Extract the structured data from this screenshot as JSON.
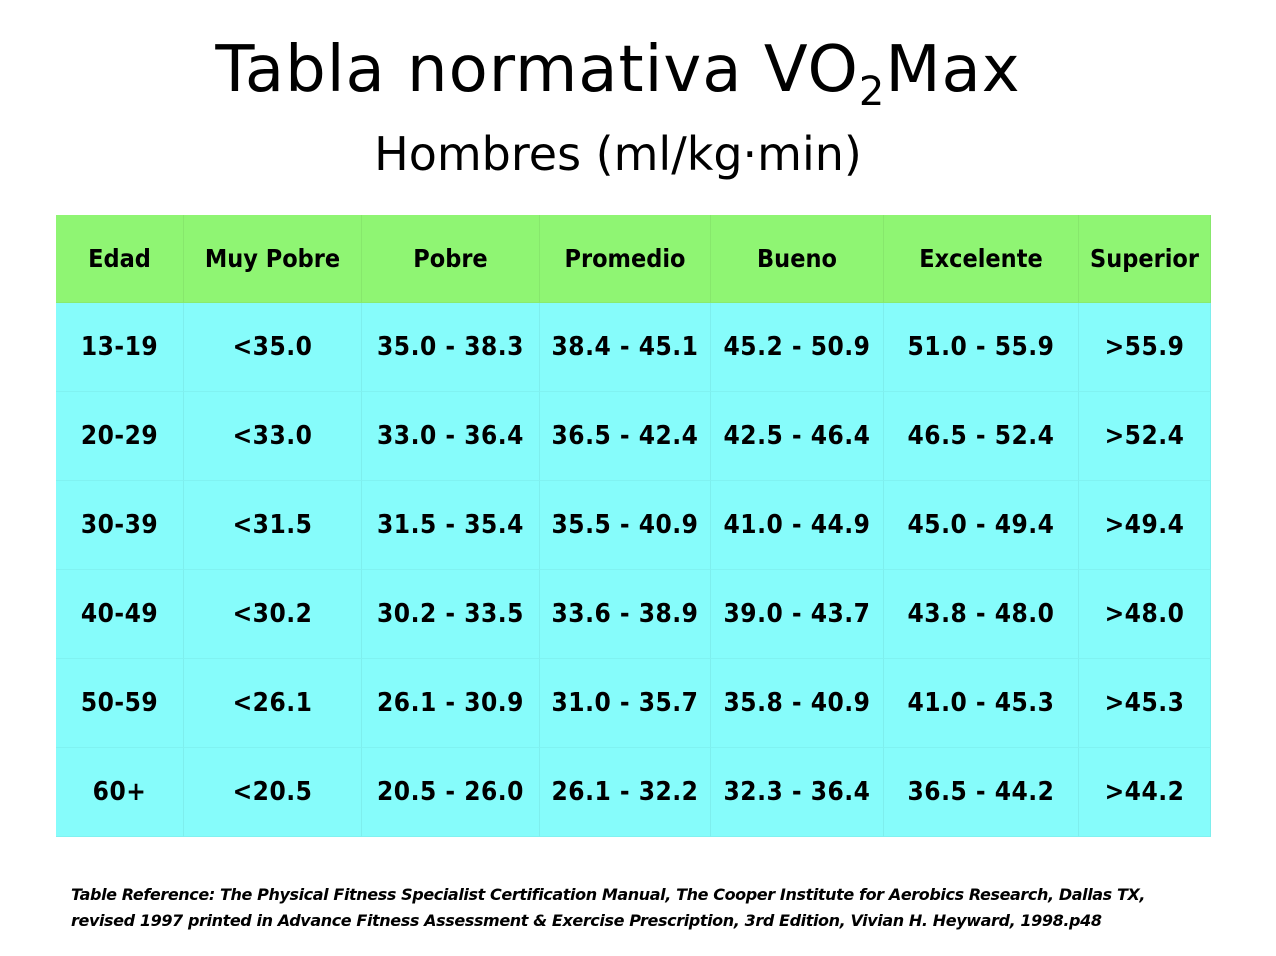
{
  "title": {
    "prefix": "Tabla normativa VO",
    "subscript": "2",
    "suffix": "Max"
  },
  "subtitle": "Hombres (ml/kg·min)",
  "table": {
    "headers": [
      "Edad",
      "Muy Pobre",
      "Pobre",
      "Promedio",
      "Bueno",
      "Excelente",
      "Superior"
    ],
    "rows": [
      [
        "13-19",
        "<35.0",
        "35.0 - 38.3",
        "38.4 - 45.1",
        "45.2 - 50.9",
        "51.0 - 55.9",
        ">55.9"
      ],
      [
        "20-29",
        "<33.0",
        "33.0 - 36.4",
        "36.5 - 42.4",
        "42.5 - 46.4",
        "46.5 - 52.4",
        ">52.4"
      ],
      [
        "30-39",
        "<31.5",
        "31.5 - 35.4",
        "35.5 - 40.9",
        "41.0 - 44.9",
        "45.0 - 49.4",
        ">49.4"
      ],
      [
        "40-49",
        "<30.2",
        "30.2 - 33.5",
        "33.6 - 38.9",
        "39.0 - 43.7",
        "43.8 - 48.0",
        ">48.0"
      ],
      [
        "50-59",
        "<26.1",
        "26.1 - 30.9",
        "31.0 - 35.7",
        "35.8 - 40.9",
        "41.0 - 45.3",
        ">45.3"
      ],
      [
        "60+",
        "<20.5",
        "20.5 - 26.0",
        "26.1 - 32.2",
        "32.3 - 36.4",
        "36.5 - 44.2",
        ">44.2"
      ]
    ]
  },
  "reference": {
    "line1": "Table Reference: The Physical Fitness Specialist Certification Manual, The Cooper Institute for Aerobics Research, Dallas TX,",
    "line2": "revised 1997 printed in Advance Fitness Assessment & Exercise Prescription, 3rd Edition, Vivian H. Heyward, 1998.p48"
  },
  "colors": {
    "header_bg": "#8ff573",
    "body_bg": "#86fcfb"
  }
}
